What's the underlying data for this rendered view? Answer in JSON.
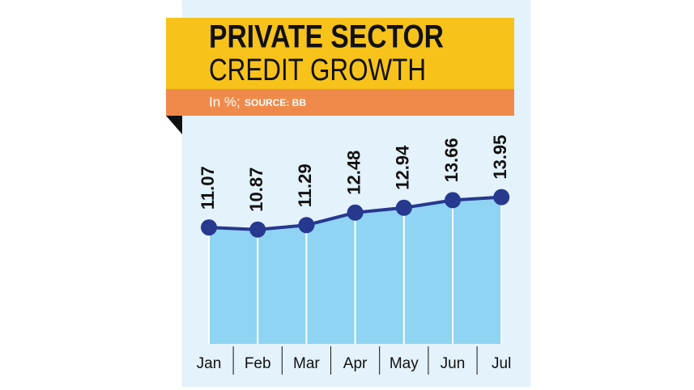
{
  "chart_data": {
    "type": "area-line",
    "title": "PRIVATE SECTOR",
    "subtitle": "CREDIT GROWTH",
    "unit_note": "In %;",
    "source": "SOURCE: BB",
    "categories": [
      "Jan",
      "Feb",
      "Mar",
      "Apr",
      "May",
      "Jun",
      "Jul"
    ],
    "values": [
      11.07,
      10.87,
      11.29,
      12.48,
      12.94,
      13.66,
      13.95
    ],
    "color": "#27388f",
    "fill": "#8fd4f2",
    "ylim": [
      0,
      18
    ]
  }
}
